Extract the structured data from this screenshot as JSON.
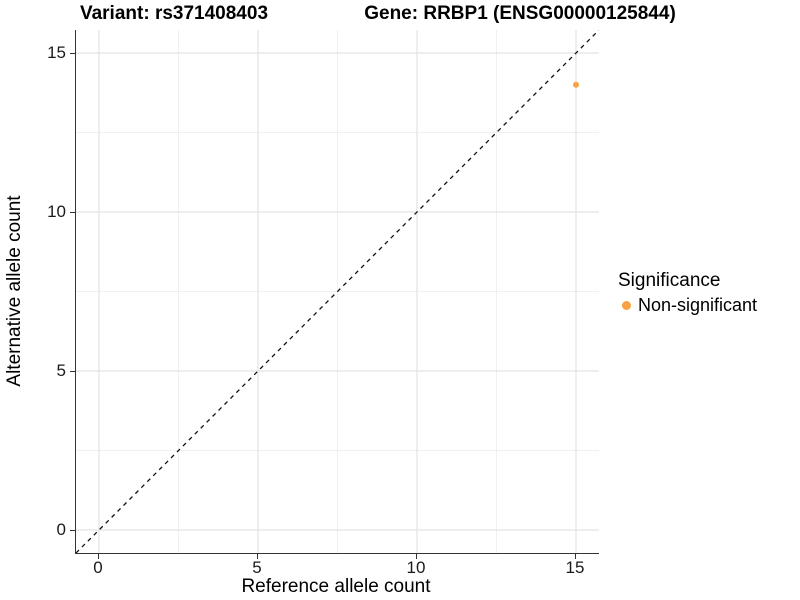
{
  "header": {
    "variant_title": "Variant: rs371408403",
    "gene_title": "Gene: RRBP1 (ENSG00000125844)"
  },
  "axes": {
    "x_title": "Reference allele count",
    "y_title": "Alternative allele count",
    "x_tick_labels": [
      "0",
      "5",
      "10",
      "15"
    ],
    "y_tick_labels": [
      "0",
      "5",
      "10",
      "15"
    ]
  },
  "legend": {
    "title": "Significance",
    "entries": [
      {
        "label": "Non-significant",
        "color": "#f9a242"
      }
    ]
  },
  "chart_data": {
    "type": "scatter",
    "title": "Variant: rs371408403 | Gene: RRBP1 (ENSG00000125844)",
    "xlabel": "Reference allele count",
    "ylabel": "Alternative allele count",
    "xlim": [
      -0.75,
      15.75
    ],
    "ylim": [
      -0.75,
      15.75
    ],
    "x_ticks": [
      0,
      5,
      10,
      15
    ],
    "y_ticks": [
      0,
      5,
      10,
      15
    ],
    "minor_ticks": [
      2.5,
      7.5,
      12.5
    ],
    "grid": "major+minor",
    "legend_position": "right",
    "reference_line": {
      "style": "dashed",
      "color": "#111111",
      "equation": "y = x"
    },
    "series": [
      {
        "name": "Non-significant",
        "color": "#f9a242",
        "points": [
          {
            "x": 15,
            "y": 14
          }
        ]
      }
    ]
  }
}
